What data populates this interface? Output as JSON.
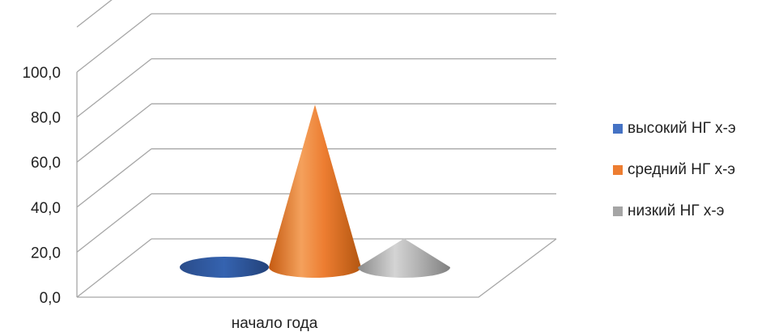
{
  "chart_data": {
    "type": "bar",
    "style": "3d-cone",
    "categories": [
      "начало года"
    ],
    "series": [
      {
        "name": "высокий НГ х-э",
        "values": [
          0.0
        ],
        "color": "#2f5597"
      },
      {
        "name": "средний НГ х-э",
        "values": [
          85.0
        ],
        "color": "#ed7d31"
      },
      {
        "name": "низкий НГ х-э",
        "values": [
          15.0
        ],
        "color": "#a5a5a5"
      }
    ],
    "ylim": [
      0,
      100
    ],
    "yticks": [
      "0,0",
      "20,0",
      "40,0",
      "60,0",
      "80,0",
      "100,0"
    ],
    "grid": true,
    "legend_position": "right"
  }
}
